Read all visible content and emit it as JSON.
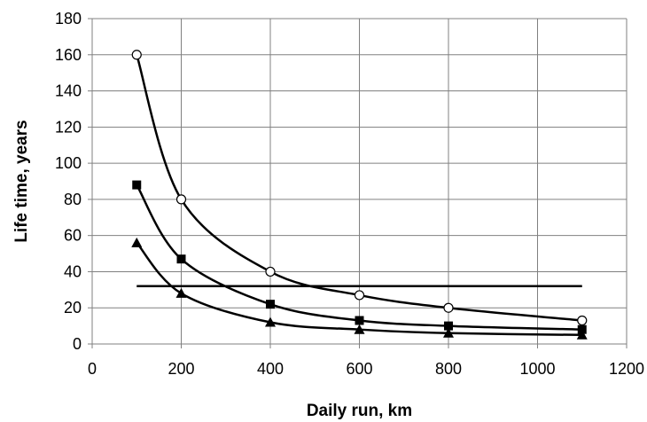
{
  "chart_data": {
    "type": "line",
    "title": "",
    "xlabel": "Daily run, km",
    "ylabel": "Life time, years",
    "xlim": [
      0,
      1200
    ],
    "ylim": [
      0,
      180
    ],
    "xticks": [
      0,
      200,
      400,
      600,
      800,
      1000,
      1200
    ],
    "yticks": [
      0,
      20,
      40,
      60,
      80,
      100,
      120,
      140,
      160,
      180
    ],
    "grid": true,
    "legend": "none",
    "series": [
      {
        "marker": "circle-open",
        "color": "#000000",
        "smooth": true,
        "points": [
          [
            100,
            160
          ],
          [
            200,
            80
          ],
          [
            400,
            40
          ],
          [
            600,
            27
          ],
          [
            800,
            20
          ],
          [
            1100,
            13
          ]
        ]
      },
      {
        "marker": "square-filled",
        "color": "#000000",
        "smooth": true,
        "points": [
          [
            100,
            88
          ],
          [
            200,
            47
          ],
          [
            400,
            22
          ],
          [
            600,
            13
          ],
          [
            800,
            10
          ],
          [
            1100,
            8
          ]
        ]
      },
      {
        "marker": "triangle-filled",
        "color": "#000000",
        "smooth": true,
        "points": [
          [
            100,
            56
          ],
          [
            200,
            28
          ],
          [
            400,
            12
          ],
          [
            600,
            8
          ],
          [
            800,
            6
          ],
          [
            1100,
            5
          ]
        ]
      },
      {
        "marker": "none",
        "color": "#000000",
        "smooth": false,
        "points": [
          [
            100,
            32
          ],
          [
            1100,
            32
          ]
        ]
      }
    ]
  }
}
